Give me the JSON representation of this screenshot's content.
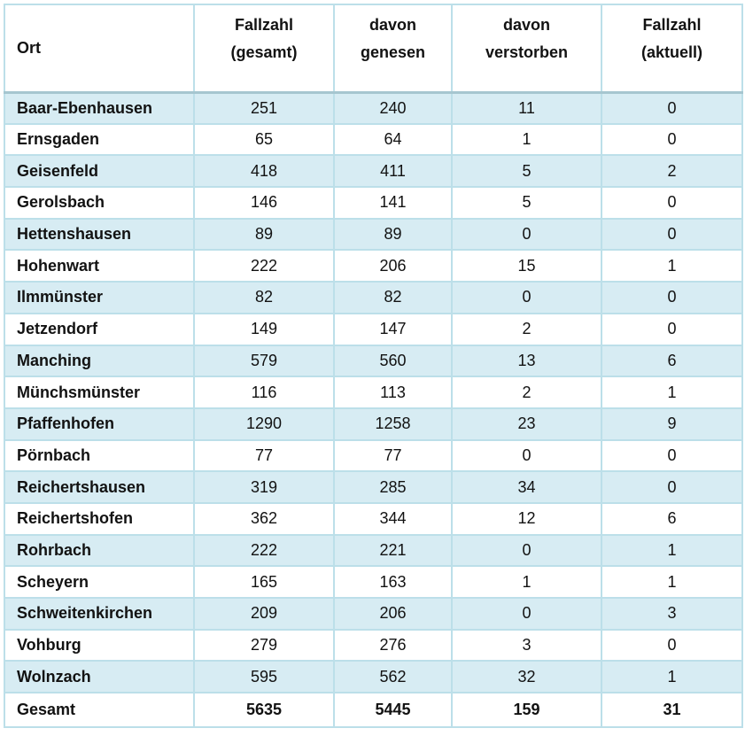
{
  "table": {
    "columns": [
      {
        "key": "ort",
        "label_lines": [
          "Ort"
        ]
      },
      {
        "key": "fallzahl_gesamt",
        "label_lines": [
          "Fallzahl",
          "(gesamt)"
        ]
      },
      {
        "key": "davon_genesen",
        "label_lines": [
          "davon",
          "genesen"
        ]
      },
      {
        "key": "davon_verstorben",
        "label_lines": [
          "davon",
          "verstorben"
        ]
      },
      {
        "key": "fallzahl_aktuell",
        "label_lines": [
          "Fallzahl",
          "(aktuell)"
        ]
      }
    ],
    "rows": [
      [
        "Baar-Ebenhausen",
        "251",
        "240",
        "11",
        "0"
      ],
      [
        "Ernsgaden",
        "65",
        "64",
        "1",
        "0"
      ],
      [
        "Geisenfeld",
        "418",
        "411",
        "5",
        "2"
      ],
      [
        "Gerolsbach",
        "146",
        "141",
        "5",
        "0"
      ],
      [
        "Hettenshausen",
        "89",
        "89",
        "0",
        "0"
      ],
      [
        "Hohenwart",
        "222",
        "206",
        "15",
        "1"
      ],
      [
        "Ilmmünster",
        "82",
        "82",
        "0",
        "0"
      ],
      [
        "Jetzendorf",
        "149",
        "147",
        "2",
        "0"
      ],
      [
        "Manching",
        "579",
        "560",
        "13",
        "6"
      ],
      [
        "Münchsmünster",
        "116",
        "113",
        "2",
        "1"
      ],
      [
        "Pfaffenhofen",
        "1290",
        "1258",
        "23",
        "9"
      ],
      [
        "Pörnbach",
        "77",
        "77",
        "0",
        "0"
      ],
      [
        "Reichertshausen",
        "319",
        "285",
        "34",
        "0"
      ],
      [
        "Reichertshofen",
        "362",
        "344",
        "12",
        "6"
      ],
      [
        "Rohrbach",
        "222",
        "221",
        "0",
        "1"
      ],
      [
        "Scheyern",
        "165",
        "163",
        "1",
        "1"
      ],
      [
        "Schweitenkirchen",
        "209",
        "206",
        "0",
        "3"
      ],
      [
        "Vohburg",
        "279",
        "276",
        "3",
        "0"
      ],
      [
        "Wolnzach",
        "595",
        "562",
        "32",
        "1"
      ]
    ],
    "total_row": [
      "Gesamt",
      "5635",
      "5445",
      "159",
      "31"
    ]
  },
  "colors": {
    "row_fill_alt": "#d7ecf3",
    "grid_border": "#bcdfe9",
    "header_bottom_border": "#a6c6d0",
    "text": "#121212",
    "background": "#ffffff"
  }
}
